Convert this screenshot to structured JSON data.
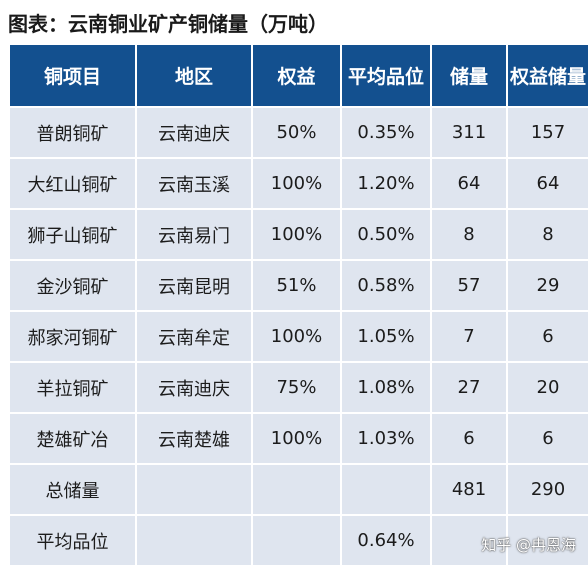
{
  "title": "图表：云南铜业矿产铜储量（万吨）",
  "table": {
    "headers": [
      "铜项目",
      "地区",
      "权益",
      "平均品位",
      "储量",
      "权益储量"
    ],
    "rows": [
      [
        "普朗铜矿",
        "云南迪庆",
        "50%",
        "0.35%",
        "311",
        "157"
      ],
      [
        "大红山铜矿",
        "云南玉溪",
        "100%",
        "1.20%",
        "64",
        "64"
      ],
      [
        "狮子山铜矿",
        "云南易门",
        "100%",
        "0.50%",
        "8",
        "8"
      ],
      [
        "金沙铜矿",
        "云南昆明",
        "51%",
        "0.58%",
        "57",
        "29"
      ],
      [
        "郝家河铜矿",
        "云南牟定",
        "100%",
        "1.05%",
        "7",
        "6"
      ],
      [
        "羊拉铜矿",
        "云南迪庆",
        "75%",
        "1.08%",
        "27",
        "20"
      ],
      [
        "楚雄矿冶",
        "云南楚雄",
        "100%",
        "1.03%",
        "6",
        "6"
      ],
      [
        "总储量",
        "",
        "",
        "",
        "481",
        "290"
      ],
      [
        "平均品位",
        "",
        "",
        "0.64%",
        "",
        ""
      ]
    ]
  },
  "watermark": "知乎 @冉恩海"
}
